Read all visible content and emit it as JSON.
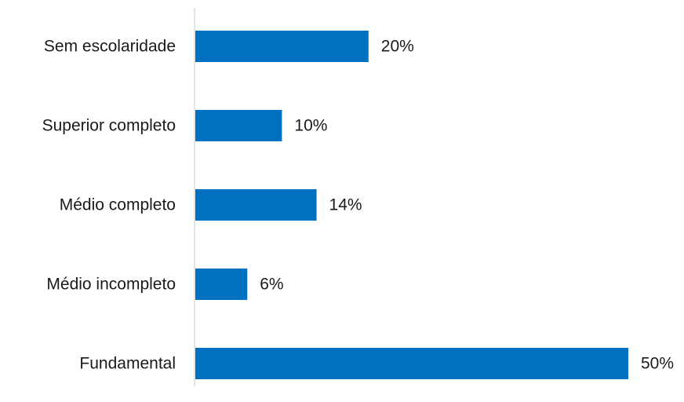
{
  "chart_data": {
    "type": "bar",
    "orientation": "horizontal",
    "categories": [
      "Sem escolaridade",
      "Superior completo",
      "Médio completo",
      "Médio incompleto",
      "Fundamental"
    ],
    "values": [
      20,
      10,
      14,
      6,
      50
    ],
    "value_labels": [
      "20%",
      "10%",
      "14%",
      "6%",
      "50%"
    ],
    "unit": "%",
    "title": "",
    "xlabel": "",
    "ylabel": "",
    "xlim": [
      0,
      50
    ],
    "grid": false,
    "legend": "none",
    "colors": {
      "bar": "#0070C0",
      "axis": "#D9D9D9",
      "text": "#1a1a1a"
    }
  }
}
